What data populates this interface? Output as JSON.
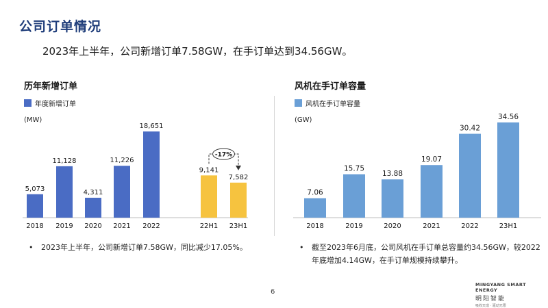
{
  "header": {
    "title": "公司订单情况",
    "subtitle": "2023年上半年，公司新增订单7.58GW，在手订单达到34.56GW。"
  },
  "chart_data": [
    {
      "type": "bar",
      "title": "历年新增订单",
      "legend": "年度新增订单",
      "unit": "(MW)",
      "categories": [
        "2018",
        "2019",
        "2020",
        "2021",
        "2022",
        "22H1",
        "23H1"
      ],
      "values": [
        5073,
        11128,
        4311,
        11226,
        18651,
        9141,
        7582
      ],
      "value_labels": [
        "5,073",
        "11,128",
        "4,311",
        "11,226",
        "18,651",
        "9,141",
        "7,582"
      ],
      "colors": [
        "#4a6cc4",
        "#4a6cc4",
        "#4a6cc4",
        "#4a6cc4",
        "#4a6cc4",
        "#f6c33f",
        "#f6c33f"
      ],
      "ylim": [
        0,
        20000
      ],
      "grid": false,
      "legend_position": "top-left",
      "annotation": "-17%"
    },
    {
      "type": "bar",
      "title": "风机在手订单容量",
      "legend": "风机在手订单容量",
      "unit": "(GW)",
      "categories": [
        "2018",
        "2019",
        "2020",
        "2021",
        "2022",
        "23H1"
      ],
      "values": [
        7.06,
        15.75,
        13.88,
        19.07,
        30.42,
        34.56
      ],
      "value_labels": [
        "7.06",
        "15.75",
        "13.88",
        "19.07",
        "30.42",
        "34.56"
      ],
      "colors": [
        "#6a9fd6"
      ],
      "ylim": [
        0,
        37
      ],
      "grid": false,
      "legend_position": "top-left"
    }
  ],
  "footnotes": {
    "left": "2023年上半年，公司新增订单7.58GW，同比减少17.05%。",
    "right_line1": "截至2023年6月底，公司风机在手订单总容量约34.56GW，较2022",
    "right_line2": "年底增加4.14GW，在手订单规模持续攀升。",
    "bullet": "•"
  },
  "page_number": "6",
  "logo": {
    "en": "MINGYANG SMART ENERGY",
    "cn": "明阳智能",
    "slogan": "吸收天成 · 驱动无限"
  },
  "colors": {
    "title": "#1f3d7a",
    "bar_blue": "#4a6cc4",
    "bar_yellow": "#f6c33f",
    "bar_light_blue": "#6a9fd6"
  }
}
